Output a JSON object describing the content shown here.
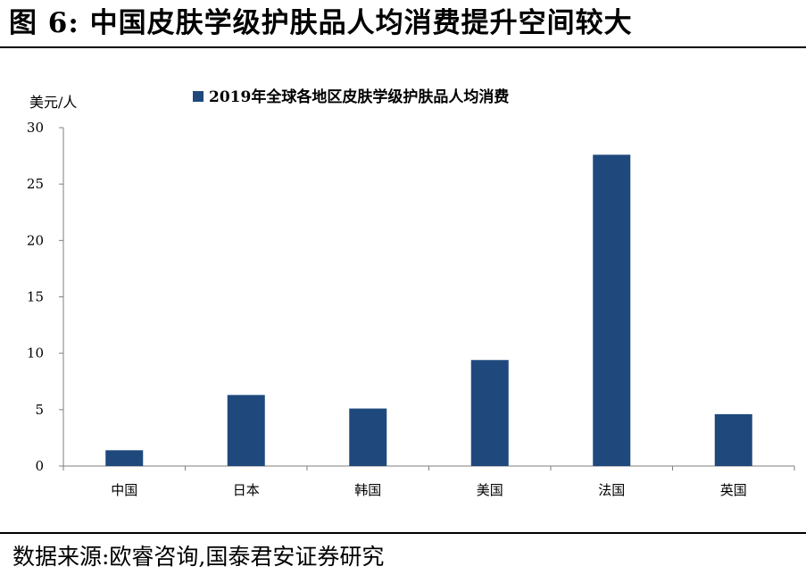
{
  "figure": {
    "title": "图 6:  中国皮肤学级护肤品人均消费提升空间较大",
    "source": "数据来源:欧睿咨询,国泰君安证券研究"
  },
  "chart_data": {
    "type": "bar",
    "ylabel": "美元/人",
    "categories": [
      "中国",
      "日本",
      "韩国",
      "美国",
      "法国",
      "英国"
    ],
    "series": [
      {
        "name": "2019年全球各地区皮肤学级护肤品人均消费",
        "values": [
          1.4,
          6.3,
          5.1,
          9.4,
          27.6,
          4.6
        ],
        "color": "#1F497D"
      }
    ],
    "ylim": [
      0,
      30
    ],
    "yticks": [
      0,
      5,
      10,
      15,
      20,
      25,
      30
    ],
    "grid": false,
    "legend": "top-center"
  }
}
